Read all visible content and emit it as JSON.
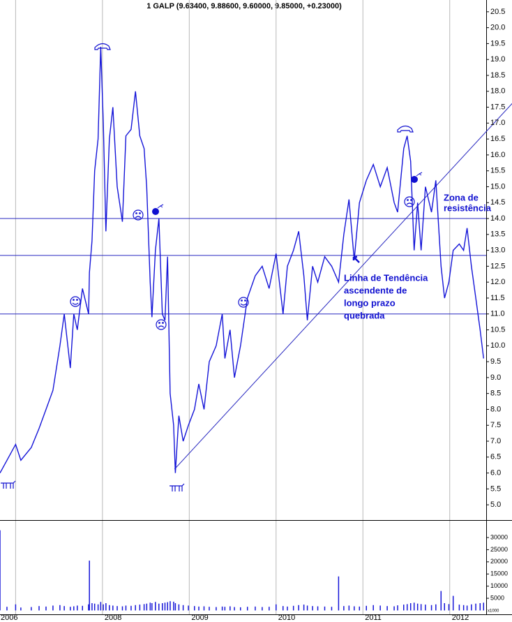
{
  "chart_data": [
    {
      "type": "line",
      "title": "1 GALP (9.63400, 9.88600, 9.60000, 9.85000, +0.23000)",
      "color": "#1414d8",
      "x": [
        2006.82,
        2006.9,
        2007.0,
        2007.06,
        2007.18,
        2007.27,
        2007.35,
        2007.43,
        2007.51,
        2007.56,
        2007.63,
        2007.67,
        2007.71,
        2007.77,
        2007.84,
        2007.85,
        2007.88,
        2007.91,
        2007.95,
        2007.98,
        2008.01,
        2008.04,
        2008.08,
        2008.12,
        2008.17,
        2008.23,
        2008.27,
        2008.33,
        2008.38,
        2008.43,
        2008.48,
        2008.51,
        2008.55,
        2008.57,
        2008.61,
        2008.65,
        2008.69,
        2008.72,
        2008.75,
        2008.78,
        2008.82,
        2008.84,
        2008.88,
        2008.93,
        2008.99,
        2009.06,
        2009.11,
        2009.17,
        2009.23,
        2009.31,
        2009.38,
        2009.41,
        2009.47,
        2009.52,
        2009.59,
        2009.67,
        2009.76,
        2009.84,
        2009.92,
        2010.0,
        2010.08,
        2010.13,
        2010.2,
        2010.26,
        2010.32,
        2010.36,
        2010.42,
        2010.48,
        2010.56,
        2010.64,
        2010.72,
        2010.78,
        2010.84,
        2010.9,
        2010.96,
        2011.04,
        2011.12,
        2011.2,
        2011.28,
        2011.36,
        2011.4,
        2011.47,
        2011.51,
        2011.55,
        2011.59,
        2011.63,
        2011.67,
        2011.72,
        2011.79,
        2011.84,
        2011.9,
        2011.94,
        2011.99,
        2012.04,
        2012.11,
        2012.16,
        2012.2,
        2012.25,
        2012.3,
        2012.35,
        2012.39
      ],
      "values": [
        6.0,
        6.4,
        6.9,
        6.4,
        6.8,
        7.4,
        8.0,
        8.6,
        10.0,
        11.0,
        9.3,
        11.0,
        10.5,
        11.8,
        11.0,
        12.3,
        13.3,
        15.5,
        16.5,
        19.4,
        17.0,
        13.6,
        16.5,
        17.5,
        15.0,
        13.9,
        16.6,
        16.8,
        18.0,
        16.6,
        16.2,
        15.0,
        12.0,
        10.9,
        13.0,
        14.0,
        11.0,
        10.8,
        12.8,
        8.5,
        7.5,
        6.0,
        7.8,
        7.0,
        7.5,
        8.0,
        8.8,
        8.0,
        9.5,
        10.0,
        11.0,
        9.6,
        10.5,
        9.0,
        10.0,
        11.5,
        12.2,
        12.5,
        11.8,
        12.9,
        11.0,
        12.5,
        13.0,
        13.6,
        12.2,
        10.8,
        12.5,
        12.0,
        12.8,
        12.5,
        12.0,
        13.5,
        14.6,
        12.7,
        14.5,
        15.2,
        15.7,
        15.0,
        15.6,
        14.5,
        14.2,
        16.2,
        16.6,
        15.8,
        13.0,
        14.5,
        13.0,
        15.0,
        14.2,
        15.2,
        12.5,
        11.5,
        12.0,
        13.0,
        13.2,
        13.0,
        13.7,
        12.5,
        11.5,
        10.5,
        9.6
      ],
      "xlim": [
        2006.82,
        2012.42
      ],
      "ylim": [
        4.52,
        20.87
      ],
      "yticks": [
        {
          "value": 5,
          "label": "5.0"
        },
        5.5,
        {
          "value": 6,
          "label": "6.0"
        },
        6.5,
        {
          "value": 7,
          "label": "7.0"
        },
        7.5,
        {
          "value": 8,
          "label": "8.0"
        },
        8.5,
        {
          "value": 9,
          "label": "9.0"
        },
        9.5,
        {
          "value": 10,
          "label": "10.0"
        },
        10.5,
        {
          "value": 11,
          "label": "11.0"
        },
        11.5,
        {
          "value": 12,
          "label": "12.0"
        },
        12.5,
        {
          "value": 13,
          "label": "13.0"
        },
        13.5,
        {
          "value": 14,
          "label": "14.0"
        },
        14.5,
        {
          "value": 15,
          "label": "15.0"
        },
        15.5,
        {
          "value": 16,
          "label": "16.0"
        },
        16.5,
        {
          "value": 17,
          "label": "17.0"
        },
        17.5,
        {
          "value": 18,
          "label": "18.0"
        },
        18.5,
        {
          "value": 19,
          "label": "19.0"
        },
        19.5,
        {
          "value": 20,
          "label": "20.0"
        },
        20.5
      ],
      "hlines": [
        14.0,
        12.84,
        11.0
      ],
      "hline_color": "#2828c0",
      "trendline": {
        "x": [
          2008.83,
          2012.72
        ],
        "values": [
          6.12,
          17.62
        ]
      },
      "annotation_trend": [
        "Linha de Tendência",
        "ascendente de",
        "longo prazo",
        "quebrada"
      ],
      "annotation_zone": [
        "Zona de",
        "resistência"
      ]
    },
    {
      "type": "bar",
      "color": "#1414d8",
      "x": [
        2006.82,
        2006.9,
        2007.0,
        2007.06,
        2007.18,
        2007.27,
        2007.35,
        2007.43,
        2007.51,
        2007.56,
        2007.63,
        2007.67,
        2007.71,
        2007.77,
        2007.84,
        2007.85,
        2007.88,
        2007.91,
        2007.95,
        2007.98,
        2008.01,
        2008.04,
        2008.08,
        2008.12,
        2008.17,
        2008.23,
        2008.27,
        2008.33,
        2008.38,
        2008.43,
        2008.48,
        2008.51,
        2008.55,
        2008.57,
        2008.61,
        2008.65,
        2008.69,
        2008.72,
        2008.75,
        2008.78,
        2008.82,
        2008.84,
        2008.88,
        2008.93,
        2008.99,
        2009.06,
        2009.11,
        2009.17,
        2009.23,
        2009.31,
        2009.38,
        2009.41,
        2009.47,
        2009.52,
        2009.59,
        2009.67,
        2009.76,
        2009.84,
        2009.92,
        2010.0,
        2010.08,
        2010.13,
        2010.2,
        2010.26,
        2010.32,
        2010.36,
        2010.42,
        2010.48,
        2010.56,
        2010.64,
        2010.72,
        2010.78,
        2010.84,
        2010.9,
        2010.96,
        2011.04,
        2011.12,
        2011.2,
        2011.28,
        2011.36,
        2011.4,
        2011.47,
        2011.51,
        2011.55,
        2011.59,
        2011.63,
        2011.67,
        2011.72,
        2011.79,
        2011.84,
        2011.9,
        2011.94,
        2011.99,
        2012.04,
        2012.11,
        2012.16,
        2012.2,
        2012.25,
        2012.3,
        2012.35,
        2012.39
      ],
      "values": [
        33000,
        1500,
        2500,
        1200,
        1400,
        1800,
        1600,
        2000,
        2200,
        1800,
        1500,
        1700,
        2000,
        1900,
        2500,
        20500,
        3000,
        2800,
        2500,
        3500,
        2500,
        3000,
        2200,
        2000,
        1800,
        1700,
        2000,
        1900,
        2200,
        2400,
        2600,
        2800,
        3200,
        3000,
        3500,
        2800,
        3000,
        3200,
        3400,
        3800,
        3600,
        3000,
        2500,
        2200,
        2000,
        1800,
        1600,
        1700,
        1500,
        1400,
        1600,
        1500,
        1700,
        1400,
        1300,
        1500,
        1600,
        1400,
        1500,
        2500,
        1800,
        1600,
        1900,
        2200,
        2400,
        2000,
        1800,
        1700,
        1600,
        1500,
        14000,
        1800,
        2000,
        1700,
        1600,
        1900,
        2200,
        2000,
        1800,
        1700,
        2100,
        2400,
        2600,
        3000,
        3200,
        2800,
        2600,
        2400,
        2200,
        2500,
        8000,
        3000,
        2600,
        6000,
        2400,
        2200,
        2000,
        2500,
        2800,
        3000,
        3200
      ],
      "xlim": [
        2006.82,
        2012.42
      ],
      "ylim": [
        -1600,
        36900
      ],
      "yticks": [
        5000,
        10000,
        15000,
        20000,
        25000,
        30000
      ],
      "xticks": [
        2006,
        {
          "value": 2007,
          "label": null
        },
        2008,
        2009,
        2010,
        2011,
        2012
      ],
      "scale_note": "x1000"
    }
  ]
}
